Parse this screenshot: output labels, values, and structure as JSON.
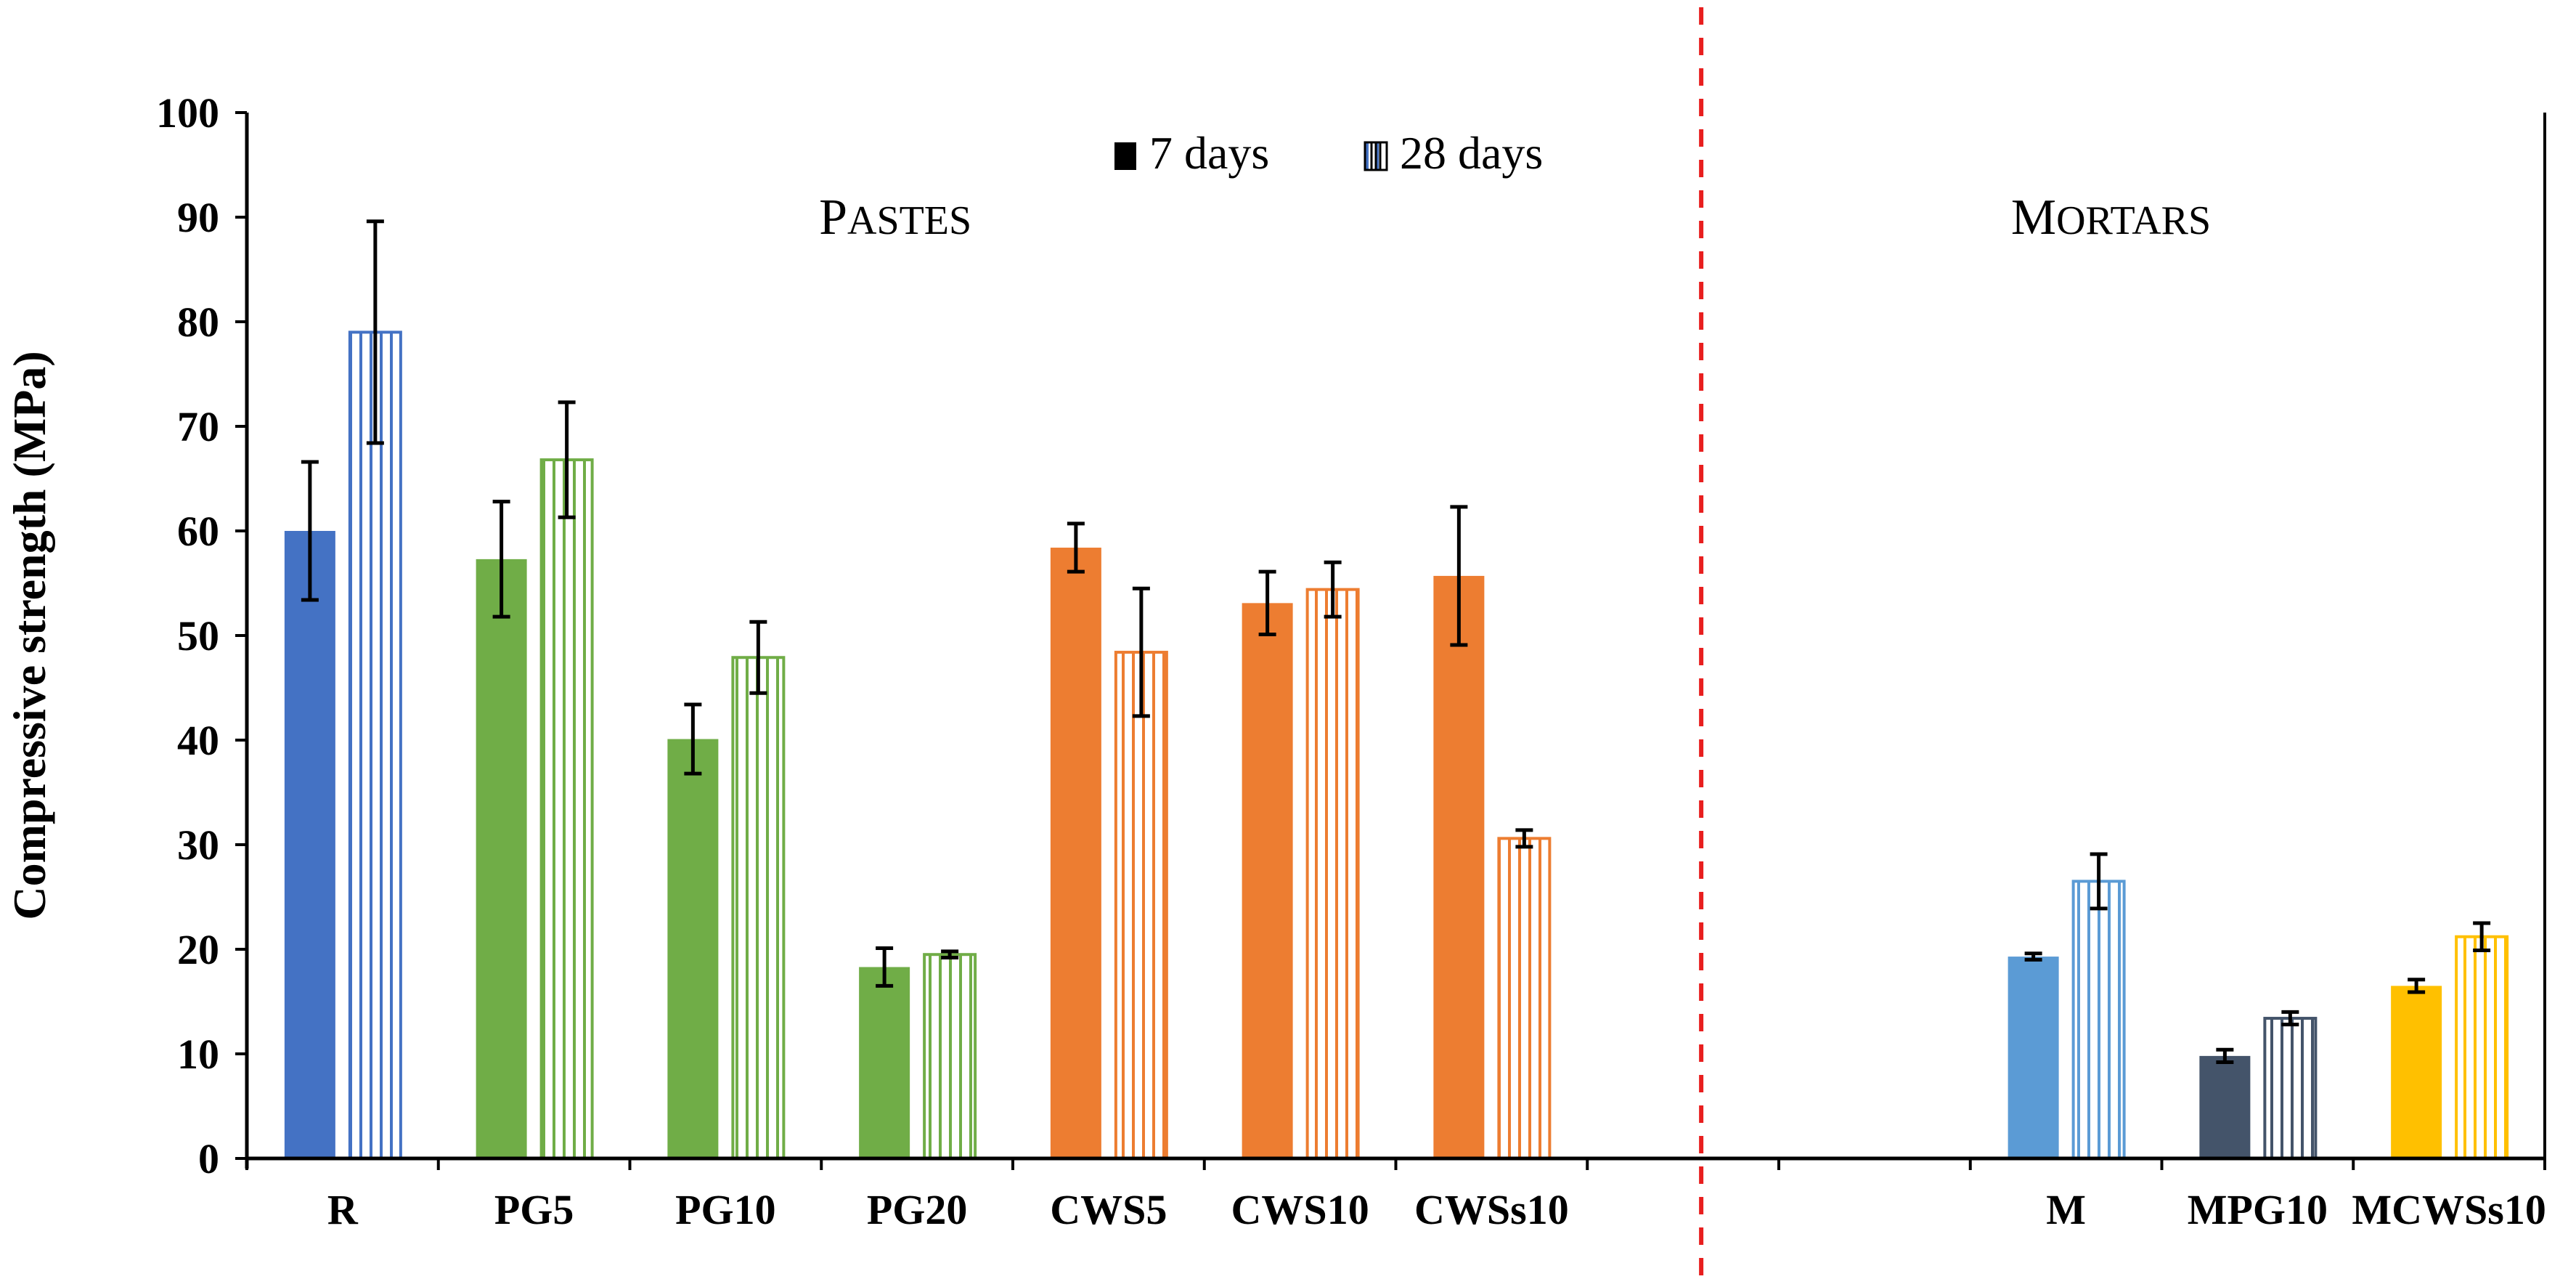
{
  "chart_data": {
    "type": "bar",
    "title": "",
    "xlabel": "",
    "ylabel": "Compressive strength (MPa)",
    "ylim": [
      0,
      100
    ],
    "yticks": [
      0,
      10,
      20,
      30,
      40,
      50,
      60,
      70,
      80,
      90,
      100
    ],
    "grid": false,
    "legend": {
      "placement": "top-center",
      "entries": [
        "7 days",
        "28 days"
      ]
    },
    "categories": [
      "R",
      "PG5",
      "PG10",
      "PG20",
      "CWS5",
      "CWS10",
      "CWSs10",
      "",
      "",
      "M",
      "MPG10",
      "MCWSs10"
    ],
    "series": [
      {
        "name": "7 days",
        "values": [
          60.0,
          57.3,
          40.1,
          18.3,
          58.4,
          53.1,
          55.7,
          null,
          null,
          19.3,
          9.8,
          16.5
        ],
        "error": [
          6.6,
          5.5,
          3.3,
          1.8,
          2.3,
          3.0,
          6.6,
          null,
          null,
          0.3,
          0.6,
          0.6
        ]
      },
      {
        "name": "28 days",
        "values": [
          79.0,
          66.8,
          47.9,
          19.5,
          48.4,
          54.4,
          30.6,
          null,
          null,
          26.5,
          13.4,
          21.2
        ],
        "error": [
          10.6,
          5.5,
          3.4,
          0.3,
          6.1,
          2.6,
          0.8,
          null,
          null,
          2.6,
          0.6,
          1.3
        ]
      }
    ],
    "colors": [
      "#4472C4",
      "#70AD47",
      "#70AD47",
      "#70AD47",
      "#ED7D31",
      "#ED7D31",
      "#ED7D31",
      null,
      null,
      "#5B9BD5",
      "#44546A",
      "#FFC000"
    ],
    "groups": [
      {
        "initial": "P",
        "rest": "ASTES"
      },
      {
        "initial": "M",
        "rest": "ORTARS"
      }
    ]
  }
}
